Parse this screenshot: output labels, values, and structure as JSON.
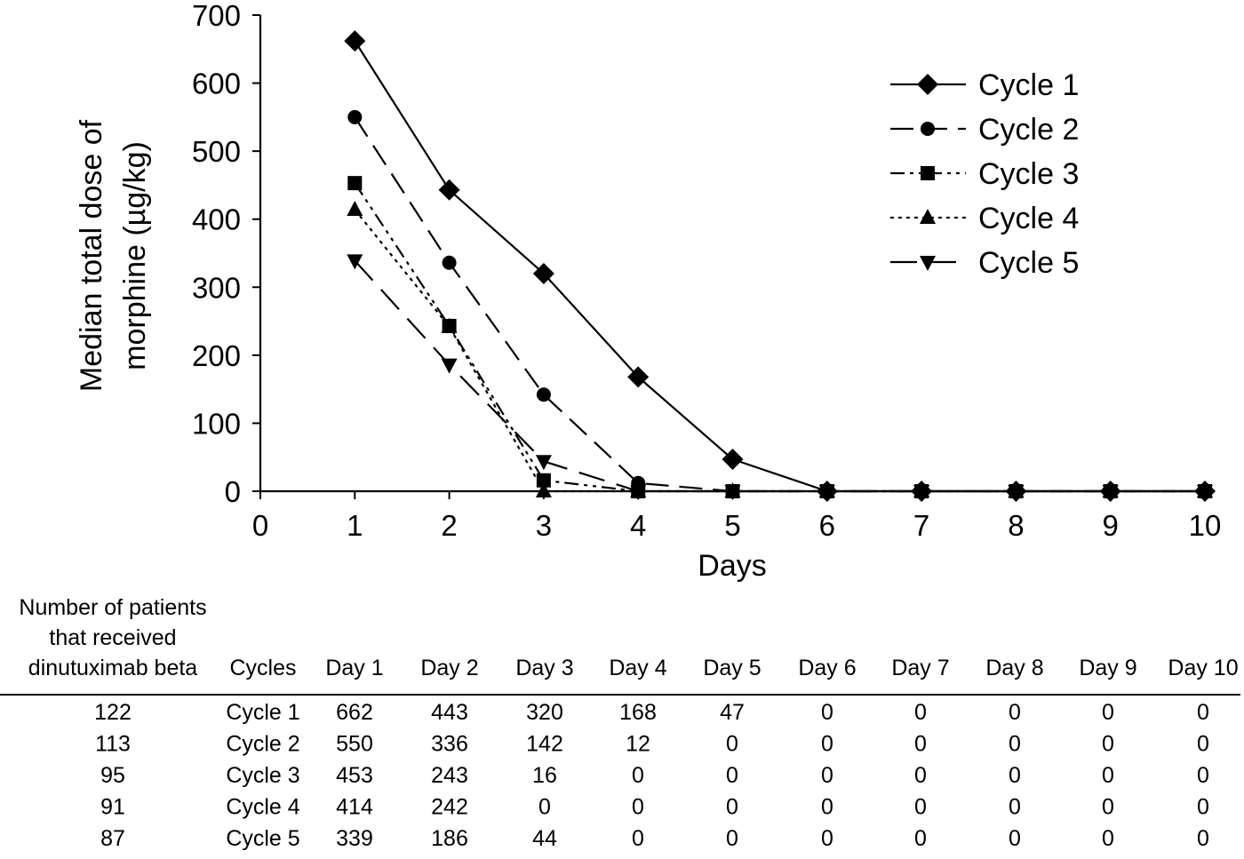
{
  "chart_data": {
    "type": "line",
    "xlabel": "Days",
    "ylabel_lines": [
      "Median total dose of",
      "morphine (µg/kg)"
    ],
    "xlim": [
      0,
      10
    ],
    "ylim": [
      0,
      700
    ],
    "x_ticks": [
      "0",
      "1",
      "2",
      "3",
      "4",
      "5",
      "6",
      "7",
      "8",
      "9",
      "10"
    ],
    "y_ticks": [
      "0",
      "100",
      "200",
      "300",
      "400",
      "500",
      "600",
      "700"
    ],
    "grid": false,
    "legend_position": "top-right",
    "x": [
      1,
      2,
      3,
      4,
      5,
      6,
      7,
      8,
      9,
      10
    ],
    "series": [
      {
        "name": "Cycle 1",
        "marker": "diamond",
        "dash": "solid",
        "values": [
          662,
          443,
          320,
          168,
          47,
          0,
          0,
          0,
          0,
          0
        ]
      },
      {
        "name": "Cycle 2",
        "marker": "circle",
        "dash": "long-dash",
        "values": [
          550,
          336,
          142,
          12,
          0,
          0,
          0,
          0,
          0,
          0
        ]
      },
      {
        "name": "Cycle 3",
        "marker": "square",
        "dash": "dash-dot-dot",
        "values": [
          453,
          243,
          16,
          0,
          0,
          0,
          0,
          0,
          0,
          0
        ]
      },
      {
        "name": "Cycle 4",
        "marker": "triangle-up",
        "dash": "dotted",
        "values": [
          414,
          242,
          0,
          0,
          0,
          0,
          0,
          0,
          0,
          0
        ]
      },
      {
        "name": "Cycle 5",
        "marker": "triangle-down",
        "dash": "long-dash-2",
        "values": [
          339,
          186,
          44,
          0,
          0,
          0,
          0,
          0,
          0,
          0
        ]
      }
    ]
  },
  "table": {
    "patients_header_lines": [
      "Number of patients",
      "that received",
      "dinutuximab beta"
    ],
    "cycles_header": "Cycles",
    "day_headers": [
      "Day 1",
      "Day 2",
      "Day 3",
      "Day 4",
      "Day 5",
      "Day 6",
      "Day 7",
      "Day 8",
      "Day 9",
      "Day 10"
    ],
    "rows": [
      {
        "patients": "122",
        "cycle": "Cycle 1",
        "values": [
          "662",
          "443",
          "320",
          "168",
          "47",
          "0",
          "0",
          "0",
          "0",
          "0"
        ]
      },
      {
        "patients": "113",
        "cycle": "Cycle 2",
        "values": [
          "550",
          "336",
          "142",
          "12",
          "0",
          "0",
          "0",
          "0",
          "0",
          "0"
        ]
      },
      {
        "patients": "95",
        "cycle": "Cycle 3",
        "values": [
          "453",
          "243",
          "16",
          "0",
          "0",
          "0",
          "0",
          "0",
          "0",
          "0"
        ]
      },
      {
        "patients": "91",
        "cycle": "Cycle 4",
        "values": [
          "414",
          "242",
          "0",
          "0",
          "0",
          "0",
          "0",
          "0",
          "0",
          "0"
        ]
      },
      {
        "patients": "87",
        "cycle": "Cycle 5",
        "values": [
          "339",
          "186",
          "44",
          "0",
          "0",
          "0",
          "0",
          "0",
          "0",
          "0"
        ]
      }
    ]
  }
}
